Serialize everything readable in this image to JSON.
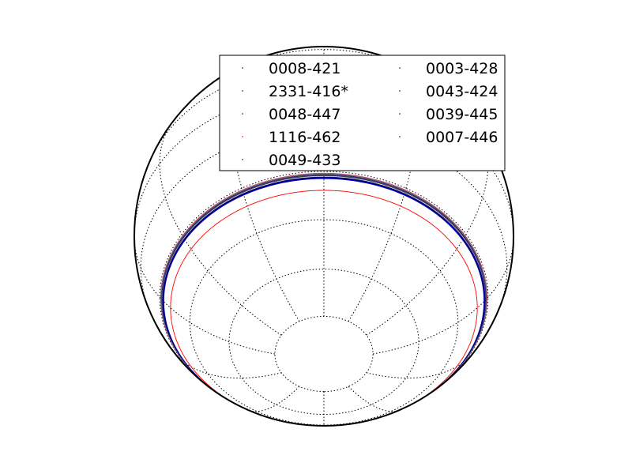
{
  "chart_data": {
    "type": "line",
    "projection": "orthographic",
    "graticule": "dotted",
    "legend": {
      "placement": "top",
      "columns": 2,
      "entries": [
        {
          "label": "0008-421",
          "color": "#000000"
        },
        {
          "label": "0003-428",
          "color": "#000000"
        },
        {
          "label": "2331-416*",
          "color": "#000000"
        },
        {
          "label": "0043-424",
          "color": "#000000"
        },
        {
          "label": "0048-447",
          "color": "#000000"
        },
        {
          "label": "0039-445",
          "color": "#000000"
        },
        {
          "label": "1116-462",
          "color": "#ff0000"
        },
        {
          "label": "0007-446",
          "color": "#000000"
        },
        {
          "label": "0049-433",
          "color": "#000000"
        }
      ]
    },
    "series": [
      {
        "name": "0008-421",
        "color": "#1a1a1a"
      },
      {
        "name": "0003-428",
        "color": "#3a3a3a"
      },
      {
        "name": "2331-416*",
        "color": "#0000cc"
      },
      {
        "name": "0043-424",
        "color": "#555555"
      },
      {
        "name": "0048-447",
        "color": "#cc3366"
      },
      {
        "name": "0039-445",
        "color": "#000080"
      },
      {
        "name": "1116-462",
        "color": "#ff0000"
      },
      {
        "name": "0007-446",
        "color": "#333399"
      },
      {
        "name": "0049-433",
        "color": "#777777"
      }
    ]
  }
}
